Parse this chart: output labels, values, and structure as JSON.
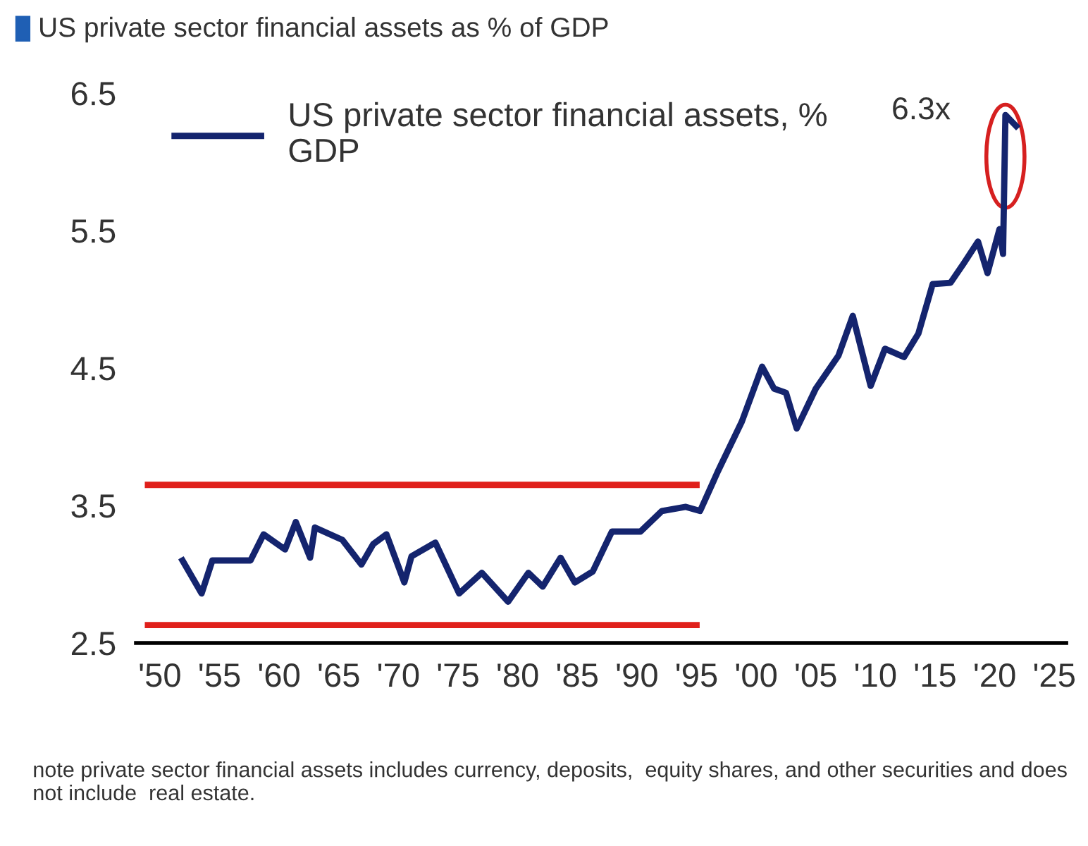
{
  "chart_data": {
    "type": "line",
    "title": "US private sector financial assets as % of GDP",
    "series": [
      {
        "name": "US private sector financial assets, %\nGDP",
        "color": "#14246e",
        "x": [
          1951.9,
          1953.5,
          1954.4,
          1957.6,
          1958.7,
          1960.5,
          1961.4,
          1962.6,
          1963,
          1965.3,
          1966.9,
          1967.9,
          1969,
          1970.5,
          1971.1,
          1973.1,
          1975.1,
          1977,
          1979.2,
          1980.9,
          1982.1,
          1983.6,
          1984.8,
          1986.3,
          1987.9,
          1990.3,
          1992.1,
          1994.1,
          1995.3,
          1996.8,
          1998.8,
          2000.5,
          2001.5,
          2002.5,
          2003.4,
          2005,
          2006.9,
          2008.1,
          2009.6,
          2010.8,
          2012.4,
          2013.6,
          2014.8,
          2016.3,
          2017.4,
          2018.6,
          2019.4,
          2020.4,
          2020.7,
          2020.9,
          2021.8
        ],
        "values": [
          3.1,
          2.86,
          3.1,
          3.1,
          3.29,
          3.18,
          3.38,
          3.12,
          3.34,
          3.25,
          3.07,
          3.22,
          3.29,
          2.94,
          3.13,
          3.23,
          2.86,
          3.01,
          2.8,
          3.01,
          2.91,
          3.12,
          2.94,
          3.02,
          3.31,
          3.31,
          3.46,
          3.49,
          3.46,
          3.75,
          4.11,
          4.51,
          4.35,
          4.32,
          4.06,
          4.35,
          4.59,
          4.88,
          4.37,
          4.64,
          4.58,
          4.75,
          5.11,
          5.12,
          5.26,
          5.42,
          5.19,
          5.51,
          5.33,
          6.34,
          6.26
        ]
      },
      {
        "color": "#e0201b",
        "x": [
          1949,
          1995
        ],
        "values": [
          3.65,
          3.65
        ]
      },
      {
        "color": "#e0201b",
        "x": [
          1949,
          1995
        ],
        "values": [
          2.63,
          2.63
        ]
      }
    ],
    "annotations": [
      {
        "text": "6.3x",
        "x": 2020.9,
        "y": 6.34
      },
      "note private sector financial assets includes currency, deposits,  equity shares, and other securities and does not include  real estate."
    ],
    "xlim": [
      1948,
      2026
    ],
    "xticks": [
      {
        "value": 1950,
        "label": "'50"
      },
      {
        "value": 1955,
        "label": "'55"
      },
      {
        "value": 1960,
        "label": "'60"
      },
      {
        "value": 1965,
        "label": "'65"
      },
      {
        "value": 1970,
        "label": "'70"
      },
      {
        "value": 1975,
        "label": "'75"
      },
      {
        "value": 1980,
        "label": "'80"
      },
      {
        "value": 1985,
        "label": "'85"
      },
      {
        "value": 1990,
        "label": "'90"
      },
      {
        "value": 1995,
        "label": "'95"
      },
      {
        "value": 2000,
        "label": "'00"
      },
      {
        "value": 2005,
        "label": "'05"
      },
      {
        "value": 2010,
        "label": "'10"
      },
      {
        "value": 2015,
        "label": "'15"
      },
      {
        "value": 2020,
        "label": "'20"
      },
      {
        "value": 2025,
        "label": "'25"
      }
    ],
    "ylim": [
      2.5,
      6.5
    ],
    "yticks": [
      2.5,
      3.5,
      4.5,
      5.5,
      6.5
    ],
    "grid": false,
    "legend": "top left",
    "line_style": "solid",
    "marker": "none"
  }
}
